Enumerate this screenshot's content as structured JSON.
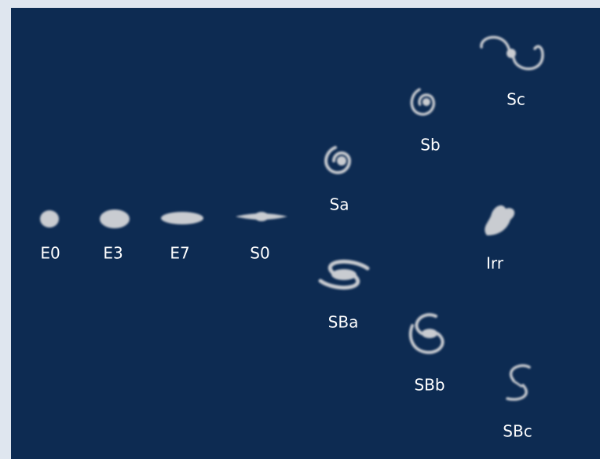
{
  "nodes": [
    {
      "label": "E0"
    },
    {
      "label": "E3"
    },
    {
      "label": "E7"
    },
    {
      "label": "S0"
    },
    {
      "label": "Sa"
    },
    {
      "label": "Sb"
    },
    {
      "label": "Sc"
    },
    {
      "label": "Irr"
    },
    {
      "label": "SBa"
    },
    {
      "label": "SBb"
    },
    {
      "label": "SBc"
    }
  ]
}
